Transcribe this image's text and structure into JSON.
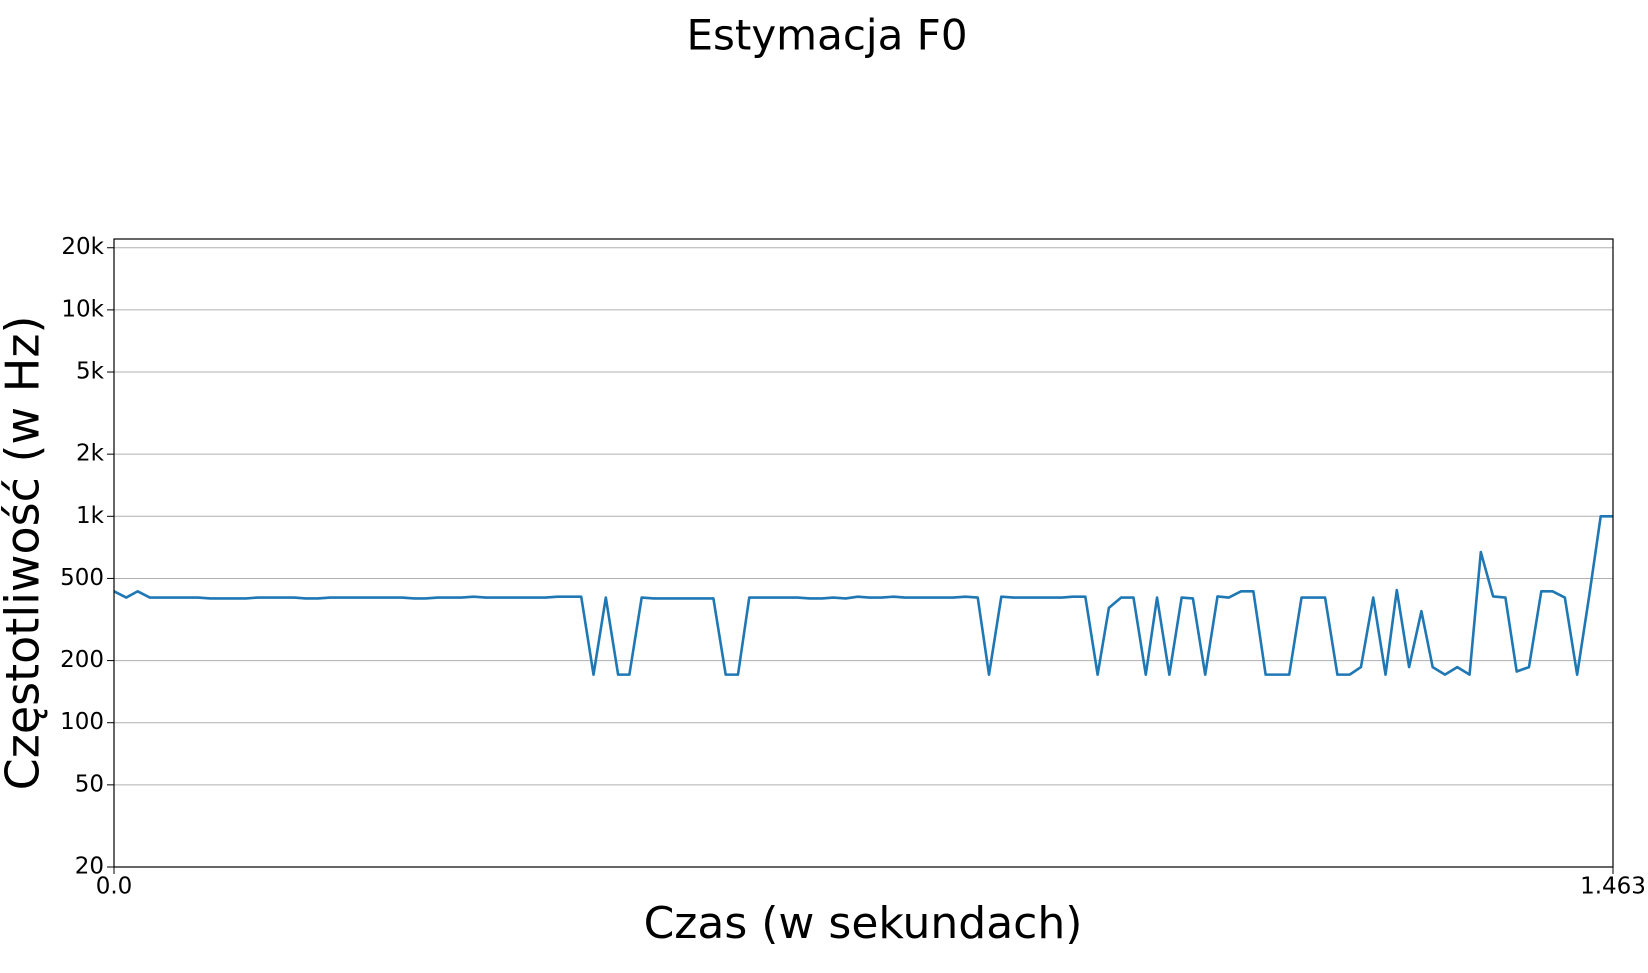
{
  "chart_data": {
    "type": "line",
    "title": "Estymacja F0",
    "x_label": "Czas (w sekundach)",
    "y_label": "Częstotliwość (w Hz)",
    "xlim": [
      0,
      1.463
    ],
    "xticks": [
      {
        "value": 0,
        "label": "0.0"
      },
      1.463
    ],
    "ylim": [
      20,
      22050
    ],
    "log_y": true,
    "grid": true,
    "color": "#1f77b4",
    "yticks": [
      20,
      50,
      100,
      200,
      500,
      {
        "value": 1000,
        "label": "1k"
      },
      {
        "value": 2000,
        "label": "2k"
      },
      {
        "value": 5000,
        "label": "5k"
      },
      {
        "value": 10000,
        "label": "10k"
      },
      {
        "value": 20000,
        "label": "20k"
      }
    ],
    "x": [
      0,
      0.012,
      0.023,
      0.035,
      0.047,
      0.059,
      0.07,
      0.082,
      0.094,
      0.105,
      0.117,
      0.129,
      0.14,
      0.152,
      0.164,
      0.176,
      0.187,
      0.199,
      0.211,
      0.222,
      0.234,
      0.246,
      0.257,
      0.269,
      0.281,
      0.293,
      0.304,
      0.316,
      0.328,
      0.339,
      0.351,
      0.363,
      0.375,
      0.386,
      0.398,
      0.41,
      0.421,
      0.433,
      0.445,
      0.456,
      0.468,
      0.48,
      0.492,
      0.503,
      0.515,
      0.527,
      0.538,
      0.55,
      0.562,
      0.573,
      0.585,
      0.597,
      0.609,
      0.62,
      0.632,
      0.644,
      0.655,
      0.667,
      0.679,
      0.691,
      0.702,
      0.714,
      0.726,
      0.737,
      0.749,
      0.761,
      0.772,
      0.784,
      0.796,
      0.808,
      0.819,
      0.831,
      0.843,
      0.854,
      0.866,
      0.878,
      0.89,
      0.901,
      0.913,
      0.925,
      0.936,
      0.948,
      0.96,
      0.971,
      0.983,
      0.995,
      1.007,
      1.018,
      1.03,
      1.042,
      1.053,
      1.065,
      1.077,
      1.088,
      1.1,
      1.112,
      1.124,
      1.135,
      1.147,
      1.159,
      1.17,
      1.182,
      1.194,
      1.206,
      1.217,
      1.229,
      1.241,
      1.252,
      1.264,
      1.276,
      1.287,
      1.299,
      1.311,
      1.323,
      1.334,
      1.346,
      1.358,
      1.369,
      1.381,
      1.393,
      1.404,
      1.416,
      1.428,
      1.44,
      1.451,
      1.463
    ],
    "values": [
      433,
      404,
      433,
      404,
      404,
      404,
      404,
      404,
      400,
      400,
      400,
      400,
      404,
      404,
      404,
      404,
      400,
      400,
      404,
      404,
      404,
      404,
      404,
      404,
      404,
      400,
      400,
      404,
      404,
      404,
      408,
      404,
      404,
      404,
      404,
      404,
      404,
      408,
      408,
      408,
      171,
      404,
      171,
      171,
      404,
      400,
      400,
      400,
      400,
      400,
      400,
      171,
      171,
      404,
      404,
      404,
      404,
      404,
      400,
      400,
      404,
      400,
      408,
      404,
      404,
      408,
      404,
      404,
      404,
      404,
      404,
      408,
      404,
      171,
      408,
      404,
      404,
      404,
      404,
      404,
      408,
      408,
      171,
      360,
      404,
      404,
      171,
      404,
      171,
      404,
      400,
      171,
      409,
      404,
      433,
      433,
      171,
      171,
      171,
      404,
      404,
      404,
      171,
      171,
      186,
      404,
      171,
      439,
      186,
      347,
      186,
      171,
      186,
      171,
      671,
      409,
      404,
      177,
      186,
      433,
      433,
      404,
      171,
      419,
      1000,
      1000
    ]
  }
}
